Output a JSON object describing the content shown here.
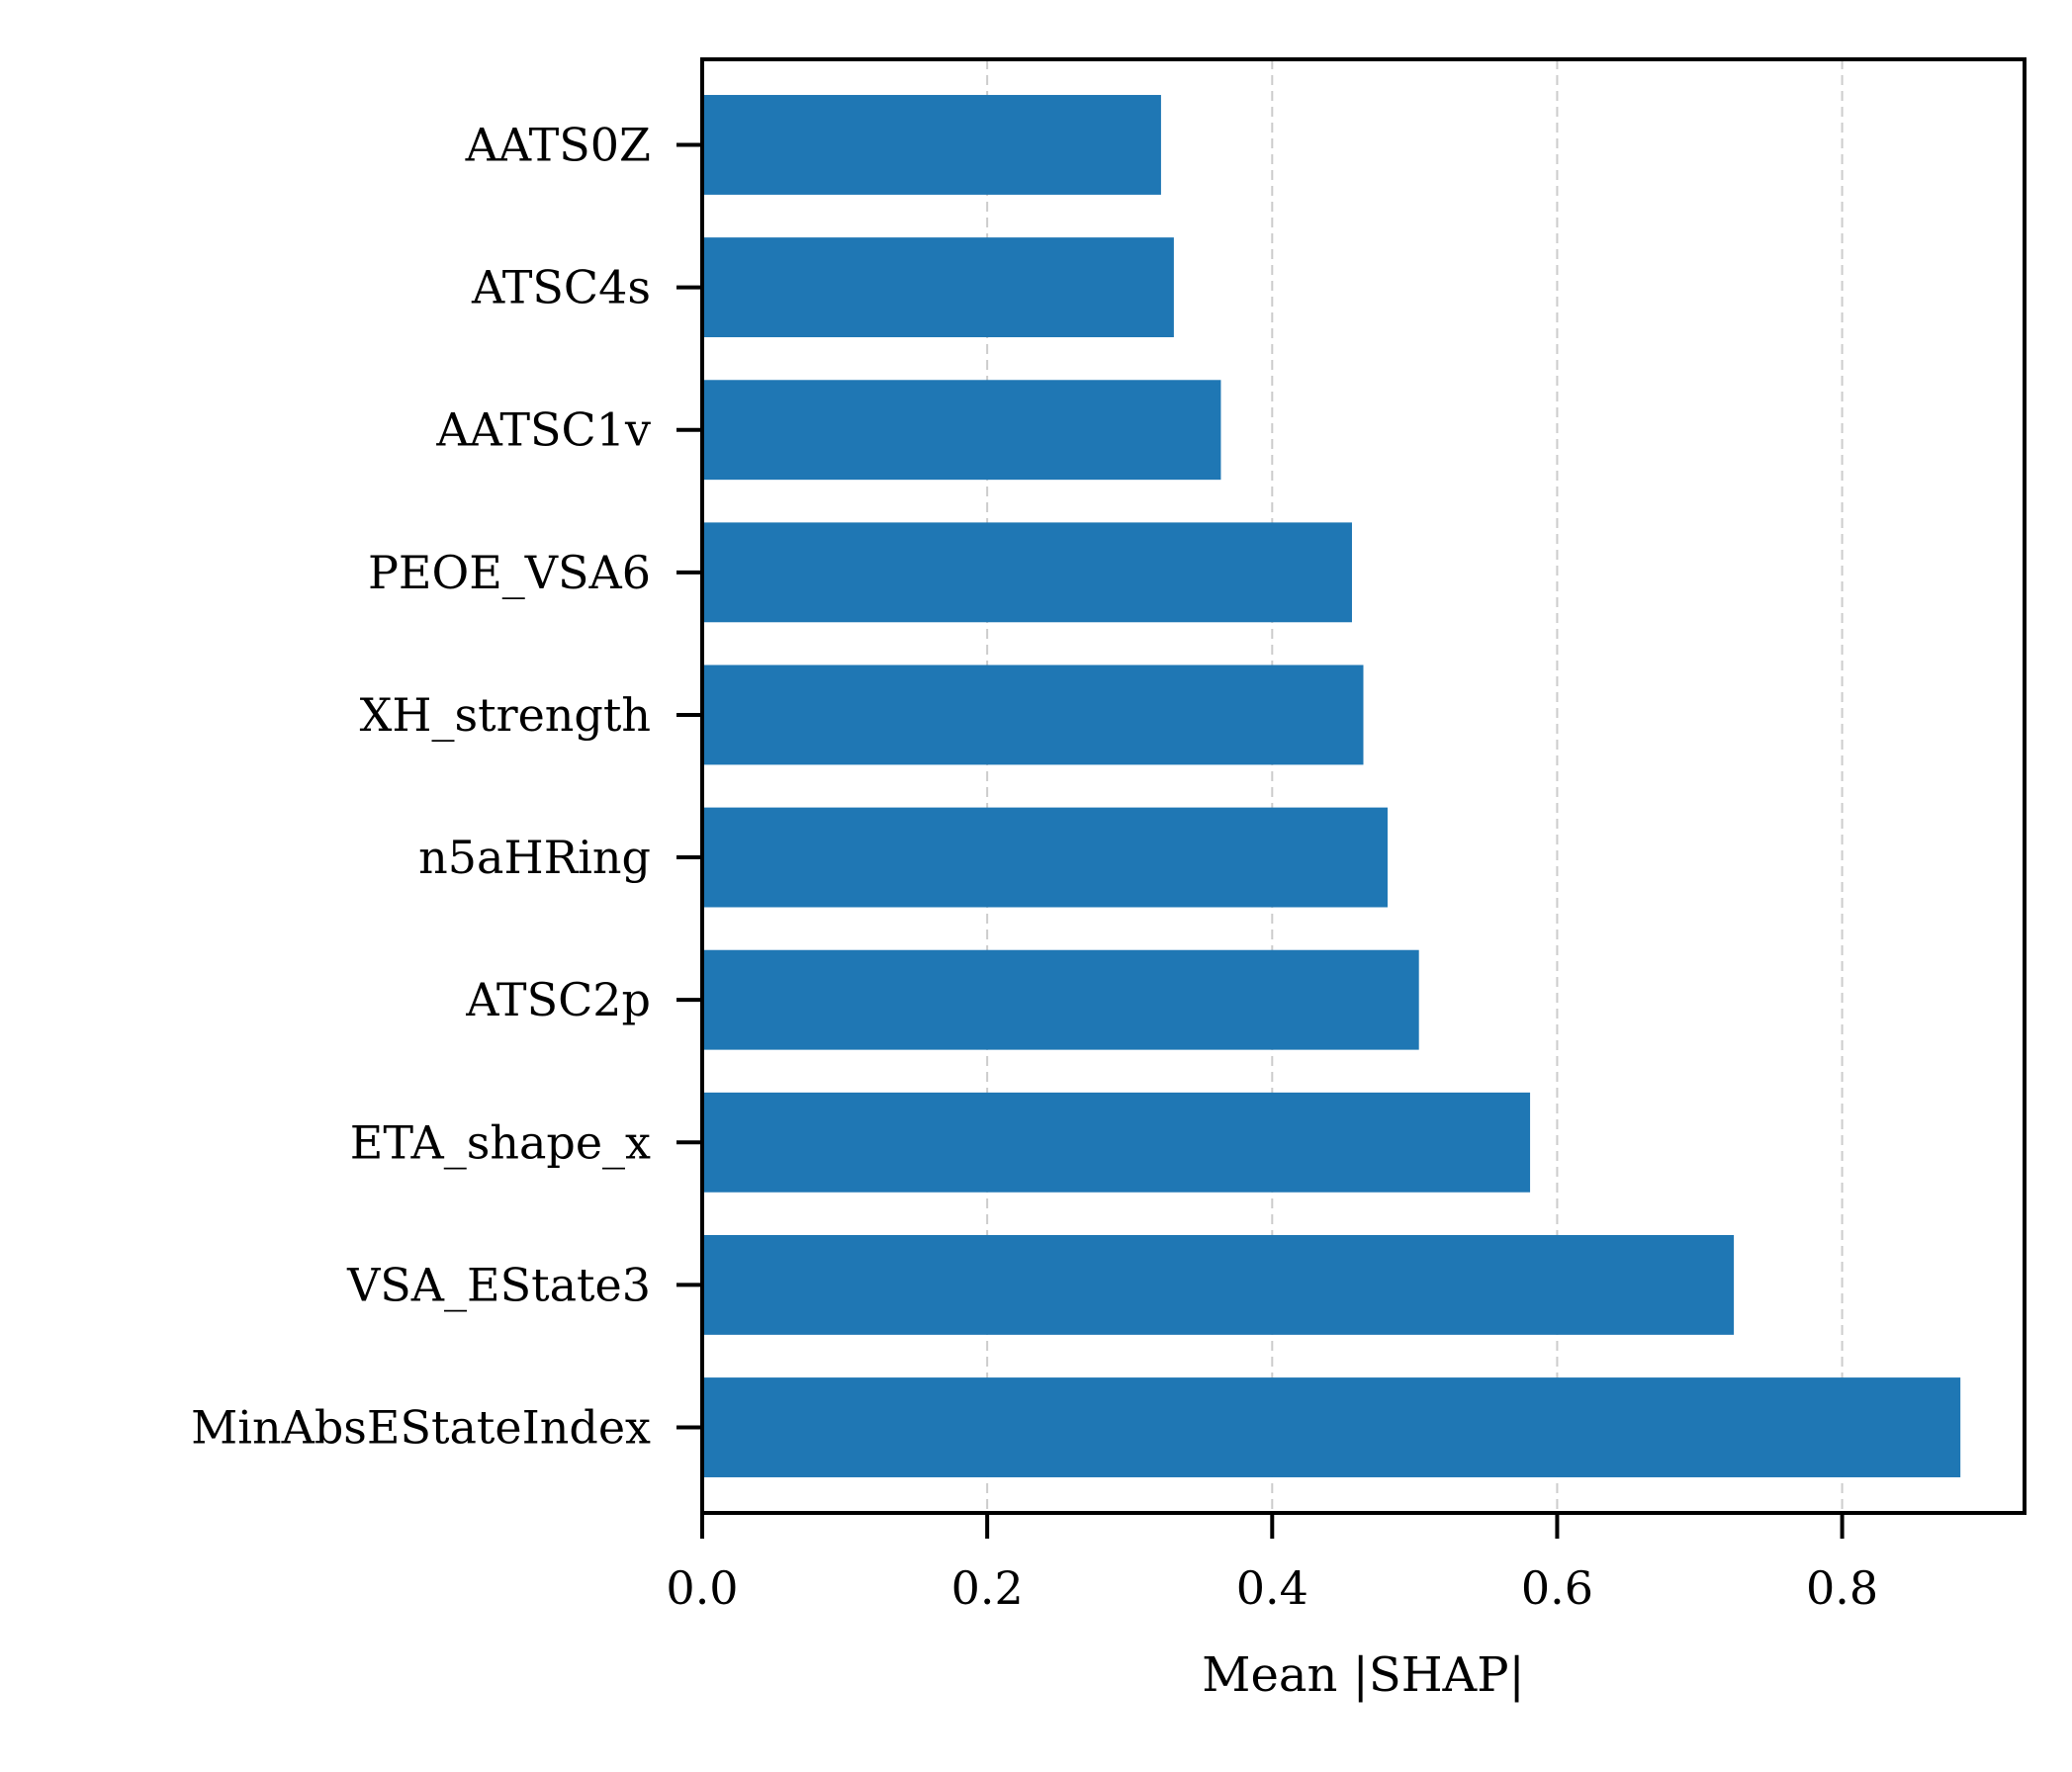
{
  "chart_data": {
    "type": "bar",
    "orientation": "horizontal",
    "title": "",
    "xlabel": "Mean |SHAP|",
    "ylabel": "",
    "categories": [
      "MinAbsEStateIndex",
      "VSA_EState3",
      "ETA_shape_x",
      "ATSC2p",
      "n5aHRing",
      "XH_strength",
      "PEOE_VSA6",
      "AATSC1v",
      "ATSC4s",
      "AATS0Z"
    ],
    "values": [
      0.883,
      0.724,
      0.581,
      0.503,
      0.481,
      0.464,
      0.456,
      0.364,
      0.331,
      0.322
    ],
    "xlim": [
      0,
      0.928
    ],
    "xticks": [
      0.0,
      0.2,
      0.4,
      0.6,
      0.8
    ],
    "xtick_labels": [
      "0.0",
      "0.2",
      "0.4",
      "0.6",
      "0.8"
    ],
    "grid": {
      "x": true,
      "y": false,
      "style": "dashed"
    },
    "legend": "none",
    "colors": {
      "bar": "#1f77b4",
      "grid": "#cccccc",
      "axis": "#000000"
    }
  }
}
